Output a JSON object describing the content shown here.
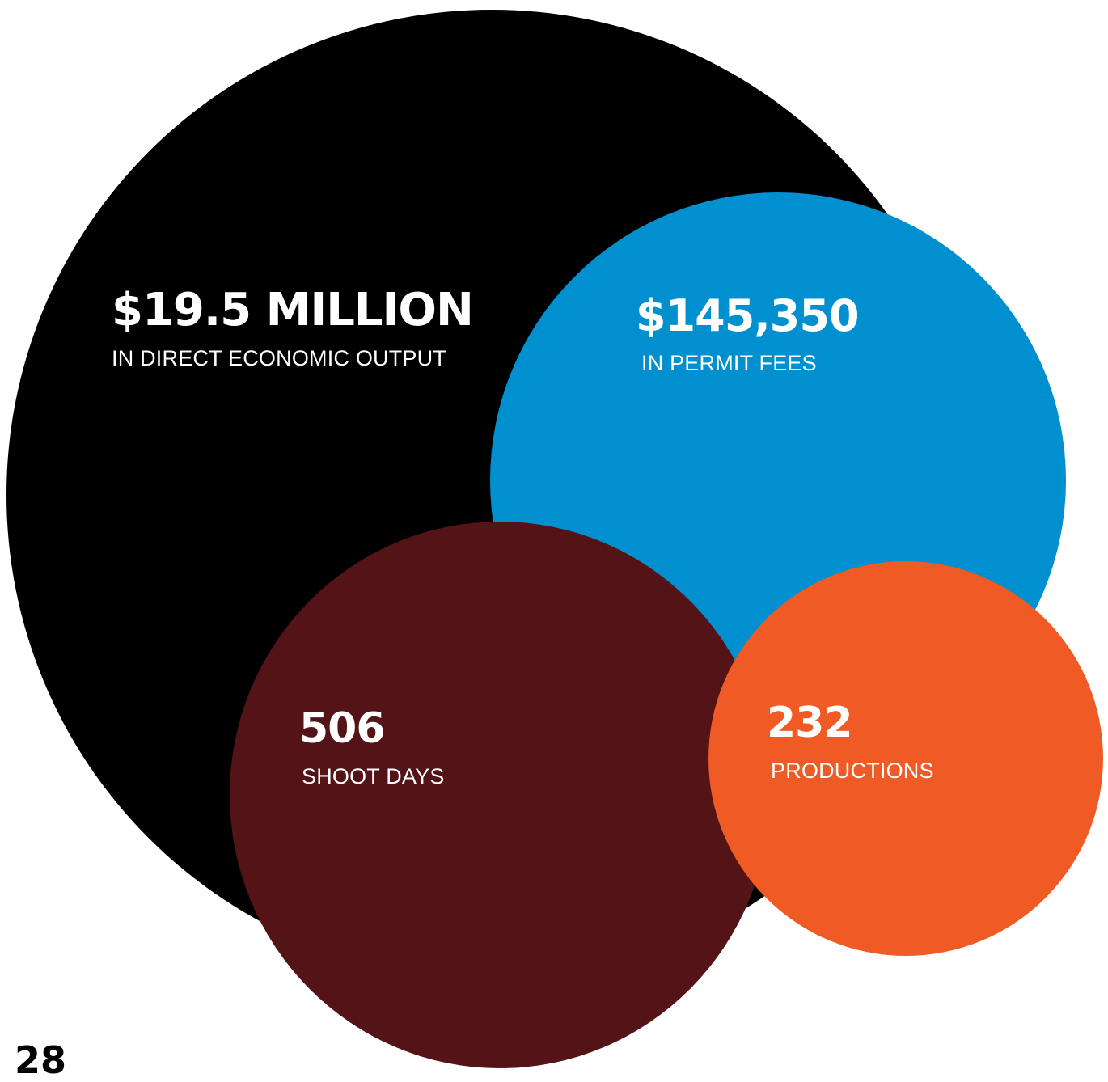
{
  "stats": {
    "output": {
      "value": "$19.5 MILLION",
      "label": "IN DIRECT ECONOMIC OUTPUT",
      "color": "#000000"
    },
    "fees": {
      "value": "$145,350",
      "label": "IN PERMIT FEES",
      "color": "#0090D0"
    },
    "days": {
      "value": "506",
      "label": "SHOOT DAYS",
      "color": "#541317"
    },
    "productions": {
      "value": "232",
      "label": "PRODUCTIONS",
      "color": "#F05A24"
    }
  },
  "page_number": "28"
}
